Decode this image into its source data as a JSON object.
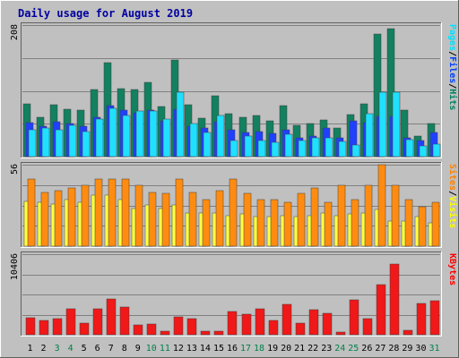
{
  "chart_data": {
    "type": "bar",
    "title": "Daily usage for August 2019",
    "categories": [
      "1",
      "2",
      "3",
      "4",
      "5",
      "6",
      "7",
      "8",
      "9",
      "10",
      "11",
      "12",
      "13",
      "14",
      "15",
      "16",
      "17",
      "18",
      "19",
      "20",
      "21",
      "22",
      "23",
      "24",
      "25",
      "26",
      "27",
      "28",
      "29",
      "30",
      "31"
    ],
    "weekend_days": [
      "3",
      "4",
      "10",
      "11",
      "17",
      "18",
      "24",
      "25",
      "31"
    ],
    "panels": [
      {
        "id": "top",
        "max_label": "208",
        "ylim": [
          0,
          208
        ],
        "grid": true,
        "legend": [
          {
            "name": "Pages",
            "color": "#00e0ff"
          },
          {
            "name": "/",
            "color": "#000000"
          },
          {
            "name": "Files",
            "color": "#0040ff"
          },
          {
            "name": "/",
            "color": "#000000"
          },
          {
            "name": "Hits",
            "color": "#008060"
          }
        ],
        "series": [
          {
            "name": "Hits",
            "color": "#138060",
            "values": [
              83,
              62,
              82,
              75,
              73,
              106,
              148,
              107,
              106,
              117,
              79,
              153,
              82,
              61,
              96,
              68,
              62,
              65,
              57,
              80,
              50,
              52,
              58,
              45,
              67,
              83,
              194,
              202,
              74,
              33,
              53
            ]
          },
          {
            "name": "Files",
            "color": "#2040ff",
            "values": [
              54,
              48,
              55,
              52,
              48,
              62,
              81,
              74,
              69,
              74,
              56,
              75,
              48,
              45,
              55,
              43,
              38,
              40,
              37,
              42,
              30,
              33,
              45,
              30,
              57,
              54,
              64,
              63,
              30,
              25,
              38
            ]
          },
          {
            "name": "Pages",
            "color": "#20e0ff",
            "values": [
              42,
              45,
              42,
              50,
              40,
              60,
              76,
              65,
              72,
              72,
              60,
              102,
              52,
              38,
              65,
              25,
              32,
              25,
              22,
              35,
              25,
              30,
              30,
              24,
              18,
              68,
              102,
              102,
              27,
              17,
              20
            ]
          }
        ]
      },
      {
        "id": "mid",
        "max_label": "56",
        "ylim": [
          0,
          56
        ],
        "grid": true,
        "legend": [
          {
            "name": "Sites",
            "color": "#ff8000"
          },
          {
            "name": "/",
            "color": "#000000"
          },
          {
            "name": "Visits",
            "color": "#ffff00"
          }
        ],
        "series": [
          {
            "name": "Visits",
            "color": "#ffff40",
            "values": [
              31,
              30,
              29,
              32,
              30,
              35,
              35,
              32,
              26,
              28,
              26,
              28,
              23,
              23,
              23,
              21,
              22,
              20,
              20,
              21,
              20,
              21,
              23,
              21,
              22,
              23,
              25,
              17,
              17,
              20,
              16
            ]
          },
          {
            "name": "Sites",
            "color": "#ff8c10",
            "values": [
              46,
              37,
              38,
              40,
              42,
              46,
              46,
              46,
              42,
              37,
              36,
              46,
              37,
              32,
              38,
              46,
              36,
              32,
              32,
              30,
              36,
              40,
              30,
              42,
              32,
              42,
              56,
              42,
              32,
              27,
              30
            ]
          }
        ]
      },
      {
        "id": "bot",
        "max_label": "10406",
        "ylim": [
          0,
          10406
        ],
        "grid": true,
        "legend": [
          {
            "name": "KBytes",
            "color": "#ff0000"
          }
        ],
        "series": [
          {
            "name": "KBytes",
            "color": "#f01818",
            "values": [
              2250,
              1900,
              2050,
              3300,
              1500,
              3300,
              4650,
              3600,
              1300,
              1400,
              500,
              2300,
              2050,
              450,
              460,
              2950,
              2700,
              3400,
              1850,
              3900,
              1450,
              3200,
              2800,
              400,
              4550,
              2100,
              6500,
              9150,
              600,
              4100,
              4400
            ]
          }
        ]
      }
    ]
  }
}
